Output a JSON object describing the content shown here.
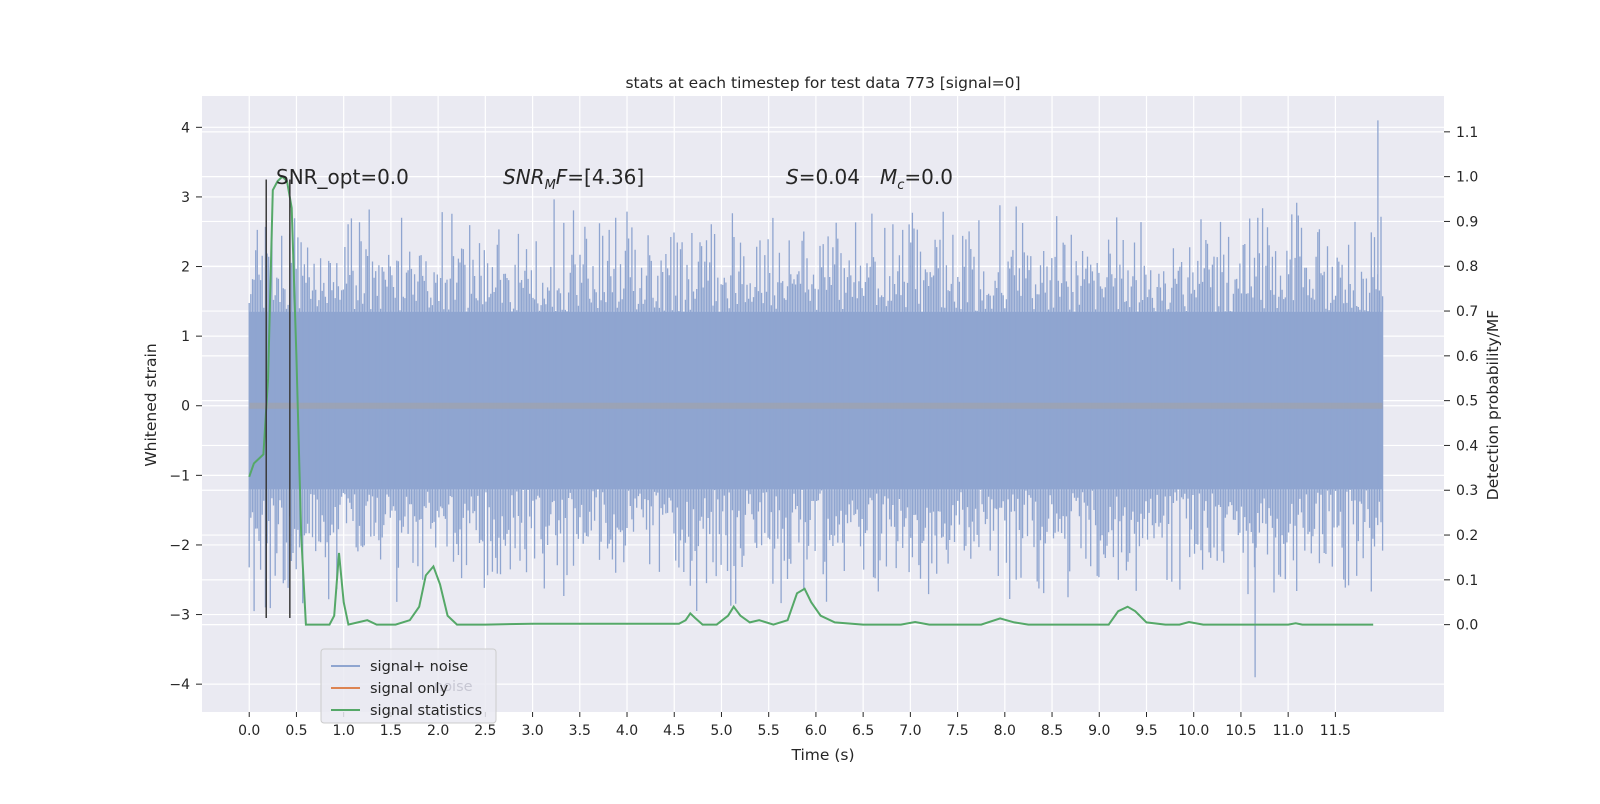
{
  "chart_data": {
    "type": "line",
    "title": "stats at each timestep for test data 773 [signal=0]",
    "xlabel": "Time (s)",
    "ylabel": "Whitened strain",
    "y2label": "Detection probability/MF",
    "xlim": [
      -0.5,
      12.65
    ],
    "ylim": [
      -4.4,
      4.45
    ],
    "y2lim": [
      -0.195,
      1.18
    ],
    "x_ticks": [
      0.0,
      0.5,
      1.0,
      1.5,
      2.0,
      2.5,
      3.0,
      3.5,
      4.0,
      4.5,
      5.0,
      5.5,
      6.0,
      6.5,
      7.0,
      7.5,
      8.0,
      8.5,
      9.0,
      9.5,
      10.0,
      10.5,
      11.0,
      11.5
    ],
    "x_tick_labels": [
      "0.0",
      "0.5",
      "1.0",
      "1.5",
      "2.0",
      "2.5",
      "3.0",
      "3.5",
      "4.0",
      "4.5",
      "5.0",
      "5.5",
      "6.0",
      "6.5",
      "7.0",
      "7.5",
      "8.0",
      "8.5",
      "9.0",
      "9.5",
      "10.0",
      "10.5",
      "11.0",
      "11.5"
    ],
    "y_ticks": [
      4,
      3,
      2,
      1,
      0,
      -1,
      -2,
      -3,
      -4
    ],
    "y_tick_labels": [
      "4",
      "3",
      "2",
      "1",
      "0",
      "−1",
      "−2",
      "−3",
      "−4"
    ],
    "y2_ticks": [
      1.1,
      1.0,
      0.9,
      0.8,
      0.7,
      0.6,
      0.5,
      0.4,
      0.3,
      0.2,
      0.1,
      0.0
    ],
    "y2_tick_labels": [
      "1.1",
      "1.0",
      "0.9",
      "0.8",
      "0.7",
      "0.6",
      "0.5",
      "0.4",
      "0.3",
      "0.2",
      "0.1",
      "0.0"
    ],
    "grid": true,
    "legend_position": "lower-left",
    "legend": [
      {
        "label": "signal+ noise",
        "color": "#8fa5d0"
      },
      {
        "label": "signal only",
        "color": "#dd8452"
      },
      {
        "label": "signal statistics",
        "color": "#55a868"
      }
    ],
    "legend_ghost_text": "noise",
    "annotations": {
      "snr_opt": "SNR_opt=0.0",
      "snr_mf_base": "SNR",
      "snr_mf_sub": "M",
      "snr_mf_rest": "F=[4.36]",
      "s_symbol": "S",
      "s_value": "=0.04",
      "mc_symbol": "M",
      "mc_sub": "c",
      "mc_value": "=0.0"
    },
    "colors": {
      "background": "#eaeaf2",
      "grid": "#ffffff",
      "noise": "#8fa5d0",
      "signal_only": "#dd8452",
      "statistics": "#55a868",
      "marker_lines": "#3a3a3a"
    },
    "noise_series": {
      "name": "signal+ noise",
      "x_range": [
        0.0,
        12.0
      ],
      "core_band": [
        -1.2,
        1.35
      ],
      "typical_peaks": [
        2.6,
        -2.6
      ],
      "max": 4.1,
      "max_at": 11.95,
      "min": -3.9,
      "min_at": 10.65
    },
    "statistics_series": {
      "name": "signal statistics",
      "points": [
        [
          0.0,
          0.33
        ],
        [
          0.05,
          0.36
        ],
        [
          0.1,
          0.37
        ],
        [
          0.15,
          0.38
        ],
        [
          0.2,
          0.55
        ],
        [
          0.25,
          0.97
        ],
        [
          0.3,
          0.99
        ],
        [
          0.35,
          1.0
        ],
        [
          0.4,
          0.99
        ],
        [
          0.45,
          0.93
        ],
        [
          0.5,
          0.6
        ],
        [
          0.55,
          0.2
        ],
        [
          0.6,
          0.0
        ],
        [
          0.7,
          0.0
        ],
        [
          0.85,
          0.0
        ],
        [
          0.9,
          0.02
        ],
        [
          0.95,
          0.16
        ],
        [
          1.0,
          0.05
        ],
        [
          1.05,
          0.0
        ],
        [
          1.15,
          0.005
        ],
        [
          1.25,
          0.01
        ],
        [
          1.35,
          0.0
        ],
        [
          1.55,
          0.0
        ],
        [
          1.7,
          0.01
        ],
        [
          1.8,
          0.04
        ],
        [
          1.87,
          0.11
        ],
        [
          1.95,
          0.13
        ],
        [
          2.02,
          0.09
        ],
        [
          2.1,
          0.02
        ],
        [
          2.2,
          0.0
        ],
        [
          2.5,
          0.0
        ],
        [
          3.0,
          0.002
        ],
        [
          4.55,
          0.002
        ],
        [
          4.62,
          0.01
        ],
        [
          4.67,
          0.025
        ],
        [
          4.72,
          0.015
        ],
        [
          4.8,
          0.0
        ],
        [
          4.95,
          0.0
        ],
        [
          5.07,
          0.02
        ],
        [
          5.13,
          0.04
        ],
        [
          5.2,
          0.02
        ],
        [
          5.3,
          0.005
        ],
        [
          5.4,
          0.01
        ],
        [
          5.55,
          0.0
        ],
        [
          5.7,
          0.01
        ],
        [
          5.8,
          0.07
        ],
        [
          5.88,
          0.08
        ],
        [
          5.95,
          0.05
        ],
        [
          6.05,
          0.02
        ],
        [
          6.2,
          0.005
        ],
        [
          6.5,
          0.0
        ],
        [
          6.9,
          0.0
        ],
        [
          7.05,
          0.006
        ],
        [
          7.2,
          0.0
        ],
        [
          7.75,
          0.0
        ],
        [
          7.95,
          0.014
        ],
        [
          8.1,
          0.005
        ],
        [
          8.25,
          0.0
        ],
        [
          9.1,
          0.0
        ],
        [
          9.2,
          0.03
        ],
        [
          9.3,
          0.04
        ],
        [
          9.38,
          0.03
        ],
        [
          9.5,
          0.005
        ],
        [
          9.7,
          0.0
        ],
        [
          9.85,
          0.0
        ],
        [
          9.95,
          0.006
        ],
        [
          10.1,
          0.0
        ],
        [
          11.0,
          0.0
        ],
        [
          11.08,
          0.003
        ],
        [
          11.15,
          0.0
        ],
        [
          11.9,
          0.0
        ]
      ]
    },
    "marker_lines": {
      "x": [
        0.18,
        0.43
      ],
      "y_range": [
        -3.05,
        3.25
      ]
    }
  }
}
